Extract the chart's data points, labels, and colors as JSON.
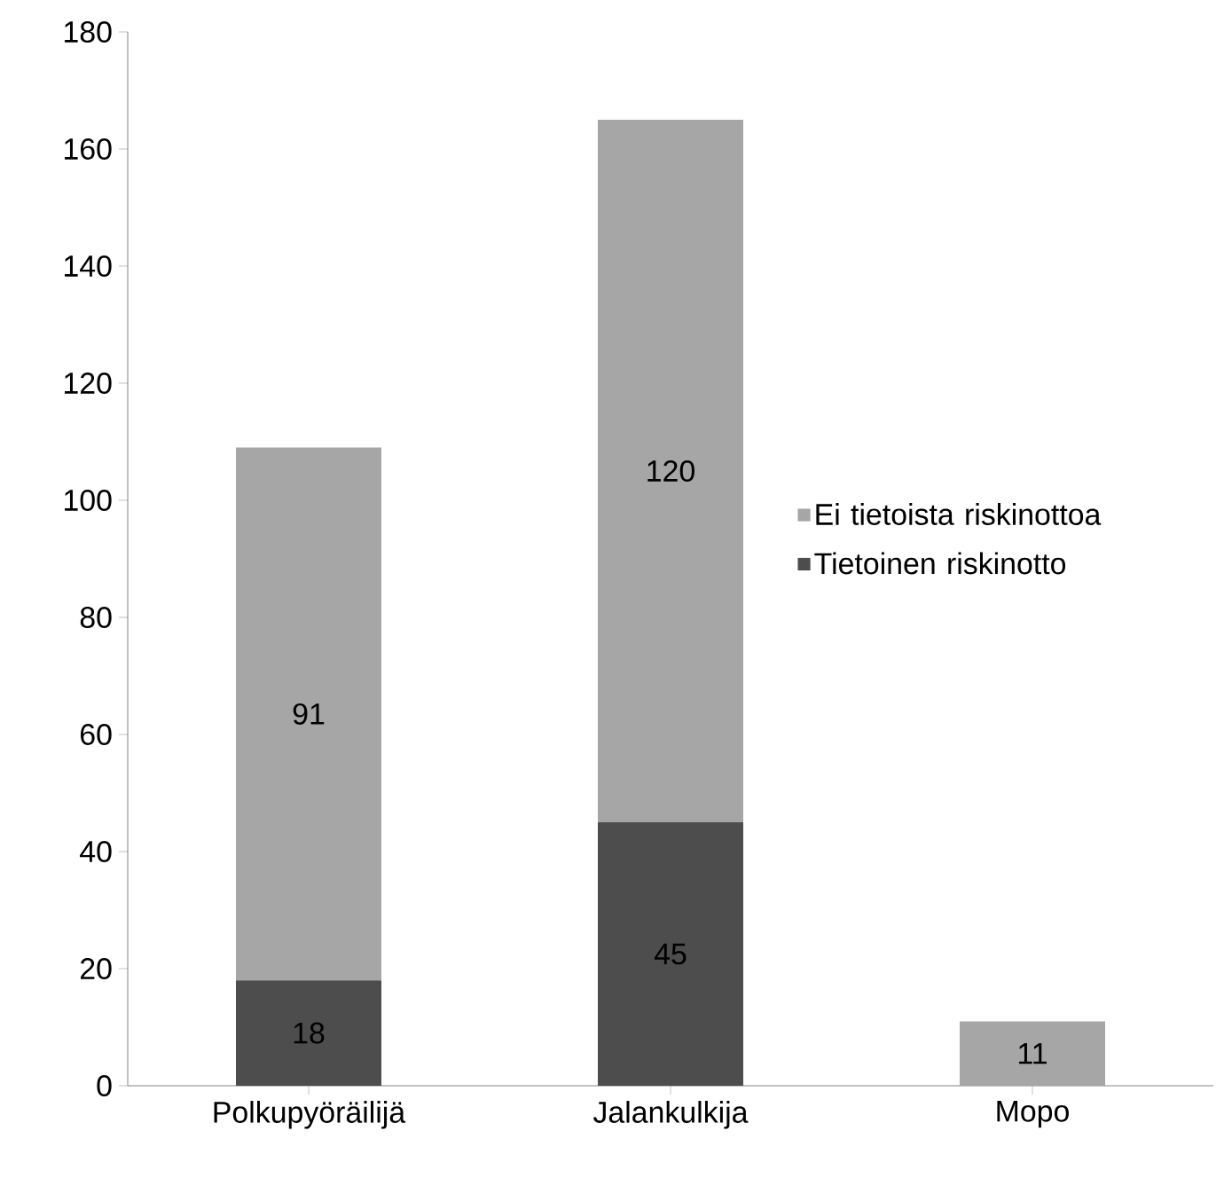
{
  "chart_data": {
    "type": "bar",
    "stacked": true,
    "categories": [
      "Polkupyöräilijä",
      "Jalankulkija",
      "Mopo"
    ],
    "series": [
      {
        "name": "Tietoinen riskinotto",
        "color": "#4d4d4d",
        "values": [
          18,
          45,
          null
        ]
      },
      {
        "name": "Ei tietoista riskinottoa",
        "color": "#a6a6a6",
        "values": [
          91,
          120,
          11
        ]
      }
    ],
    "ylim": [
      0,
      180
    ],
    "yticks": [
      0,
      20,
      40,
      60,
      80,
      100,
      120,
      140,
      160,
      180
    ],
    "data_labels": true,
    "legend": "right",
    "grid": false
  }
}
